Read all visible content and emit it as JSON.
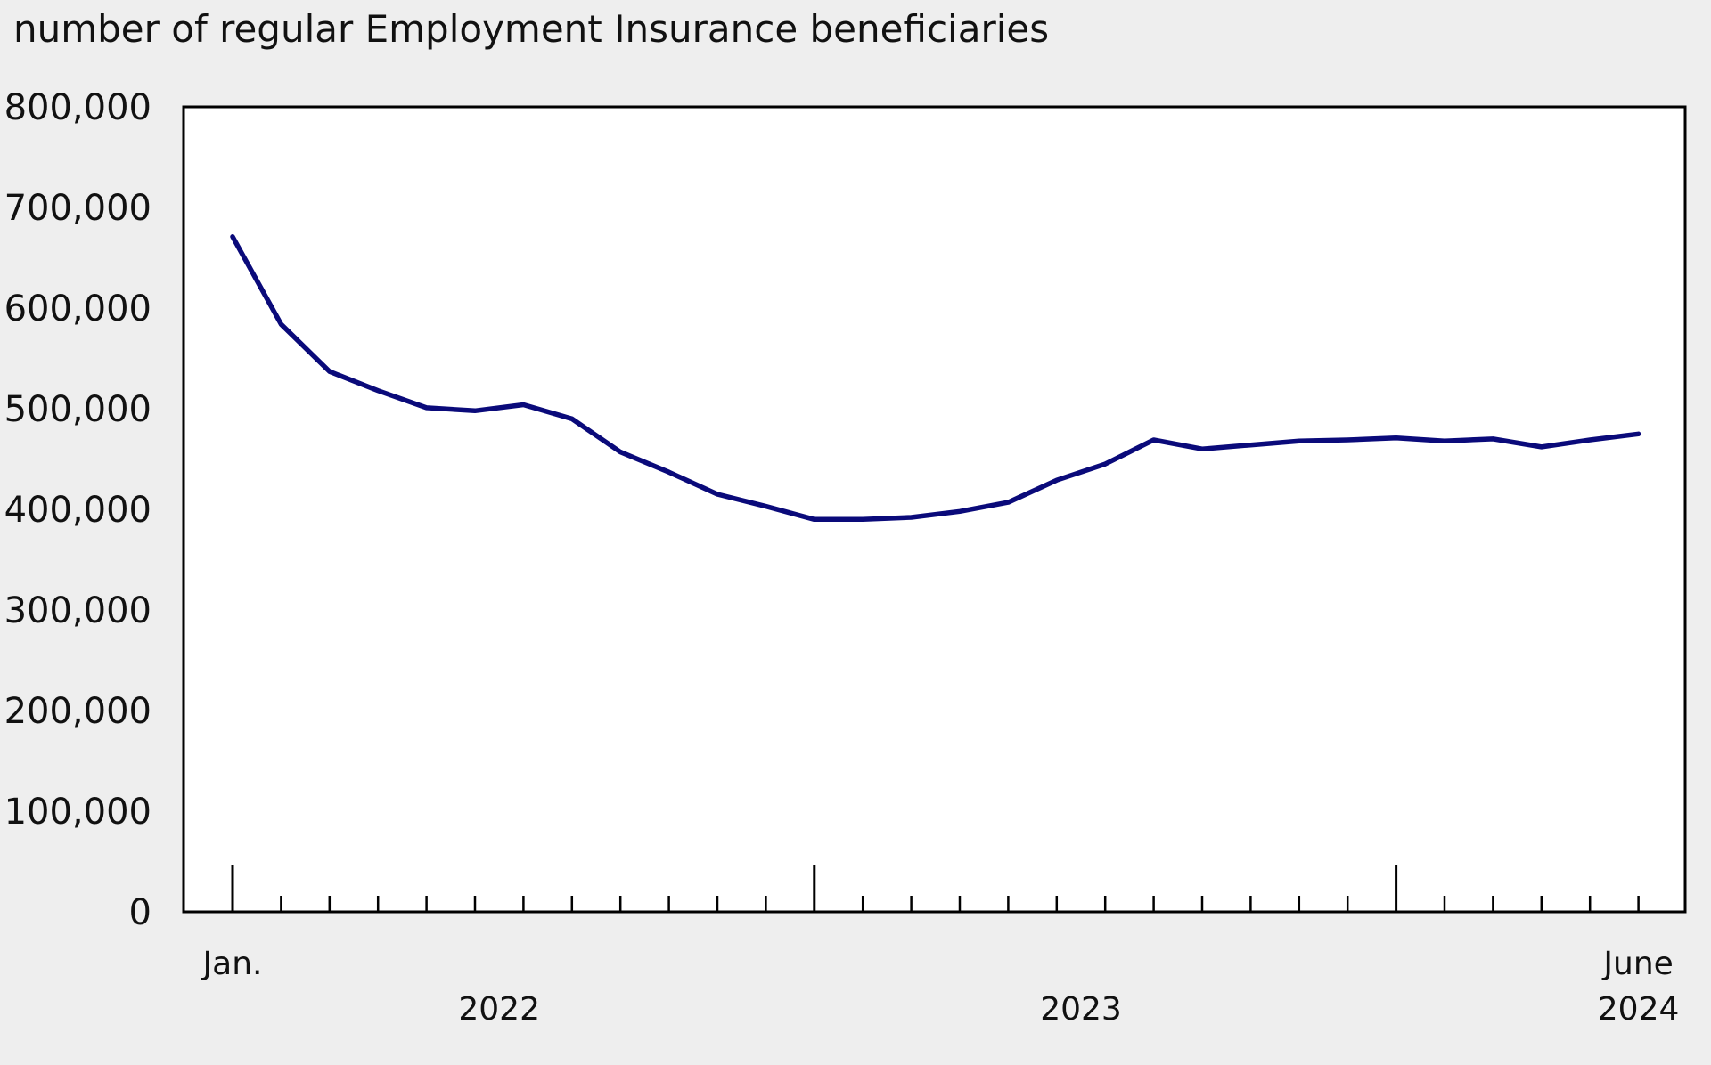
{
  "chart_data": {
    "type": "line",
    "title": "",
    "ylabel": "number of regular Employment Insurance beneficiaries",
    "xlabel": "",
    "ylim": [
      0,
      800000
    ],
    "yticks": [
      0,
      100000,
      200000,
      300000,
      400000,
      500000,
      600000,
      700000,
      800000
    ],
    "ytick_labels": [
      "0",
      "100,000",
      "200,000",
      "300,000",
      "400,000",
      "500,000",
      "600,000",
      "700,000",
      "800,000"
    ],
    "x": [
      "2022-01",
      "2022-02",
      "2022-03",
      "2022-04",
      "2022-05",
      "2022-06",
      "2022-07",
      "2022-08",
      "2022-09",
      "2022-10",
      "2022-11",
      "2022-12",
      "2023-01",
      "2023-02",
      "2023-03",
      "2023-04",
      "2023-05",
      "2023-06",
      "2023-07",
      "2023-08",
      "2023-09",
      "2023-10",
      "2023-11",
      "2023-12",
      "2024-01",
      "2024-02",
      "2024-03",
      "2024-04",
      "2024-05",
      "2024-06"
    ],
    "month_labels": [
      {
        "index": 0,
        "text": "Jan."
      },
      {
        "index": 29,
        "text": "June"
      }
    ],
    "year_labels": [
      {
        "text": "2022",
        "center_index": 5.5
      },
      {
        "text": "2023",
        "center_index": 17.5
      },
      {
        "text": "2024",
        "center_index": 29
      }
    ],
    "year_start_indices": [
      0,
      12,
      24
    ],
    "grid": false,
    "legend": "none",
    "series": [
      {
        "color": "#0a0a7a",
        "values": [
          671000,
          584000,
          537000,
          518000,
          501000,
          498000,
          504000,
          490000,
          457000,
          437000,
          415000,
          403000,
          390000,
          390000,
          392000,
          398000,
          407000,
          429000,
          445000,
          469000,
          460000,
          464000,
          468000,
          469000,
          471000,
          468000,
          470000,
          462000,
          469000,
          475000
        ]
      }
    ]
  }
}
